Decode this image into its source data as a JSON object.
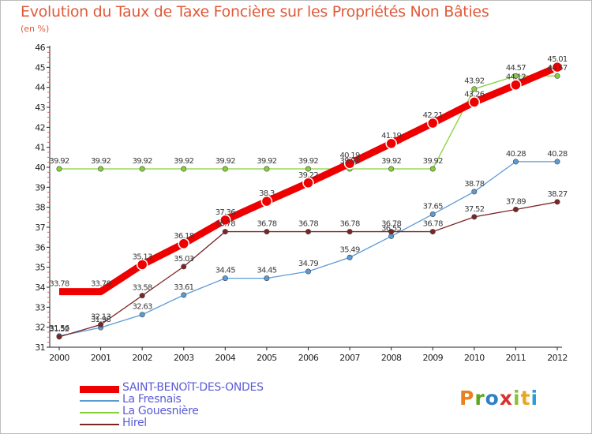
{
  "title": "Evolution du Taux de Taxe Foncière sur les Propriétés Non Bâties",
  "unit": "(en %)",
  "logo": {
    "letters": [
      "P",
      "r",
      "o",
      "x",
      "i",
      "t",
      "i"
    ],
    "colors": [
      "#e8821e",
      "#5fa61e",
      "#2f7fc8",
      "#d6332a",
      "#8ac041",
      "#e8a71e",
      "#2f9ad6"
    ]
  },
  "chart_data": {
    "type": "line",
    "x": [
      "2000",
      "2001",
      "2002",
      "2003",
      "2004",
      "2005",
      "2006",
      "2007",
      "2008",
      "2009",
      "2010",
      "2011",
      "2012"
    ],
    "yticks": [
      31,
      32,
      33,
      34,
      35,
      36,
      37,
      38,
      39,
      40,
      41,
      42,
      43,
      44,
      45,
      46
    ],
    "ylim": [
      31,
      46
    ],
    "grid": false,
    "legend_position": "bottom-left",
    "series": [
      {
        "name": "SAINT-BENOîT-DES-ONDES",
        "color": "#ee0000",
        "values": [
          33.78,
          33.78,
          35.13,
          36.18,
          37.36,
          38.3,
          39.22,
          40.19,
          41.19,
          42.21,
          43.26,
          44.12,
          45.01
        ],
        "labels": [
          "33.78",
          "33.78",
          "35.13",
          "36.18",
          "37.36",
          "38.3",
          "39.22",
          "40.19",
          "41.19",
          "42.21",
          "43.26",
          "44.12",
          "45.01"
        ]
      },
      {
        "name": "La Fresnais",
        "color": "#5b9bd5",
        "values": [
          31.56,
          31.98,
          32.63,
          33.61,
          34.45,
          34.45,
          34.79,
          35.49,
          36.55,
          37.65,
          38.78,
          40.28,
          40.28
        ],
        "labels": [
          "31.56",
          "31.98",
          "32.63",
          "33.61",
          "34.45",
          "34.45",
          "34.79",
          "35.49",
          "36.55",
          "37.65",
          "38.78",
          "40.28",
          "40.28"
        ]
      },
      {
        "name": "La Gouesnière",
        "color": "#86cf3a",
        "values": [
          39.92,
          39.92,
          39.92,
          39.92,
          39.92,
          39.92,
          39.92,
          39.92,
          39.92,
          39.92,
          43.92,
          44.57,
          44.57
        ],
        "labels": [
          "39.92",
          "39.92",
          "39.92",
          "39.92",
          "39.92",
          "39.92",
          "39.92",
          "39.92",
          "39.92",
          "39.92",
          "43.92",
          "44.57",
          "44.57"
        ]
      },
      {
        "name": "Hirel",
        "color": "#7b2525",
        "values": [
          31.52,
          32.13,
          33.58,
          35.03,
          36.78,
          36.78,
          36.78,
          36.78,
          36.78,
          36.78,
          37.52,
          37.89,
          38.27
        ],
        "labels": [
          "31.52",
          "32.13",
          "33.58",
          "35.03",
          "36.78",
          "36.78",
          "36.78",
          "36.78",
          "36.78",
          "36.78",
          "37.52",
          "37.89",
          "38.27"
        ]
      }
    ]
  }
}
